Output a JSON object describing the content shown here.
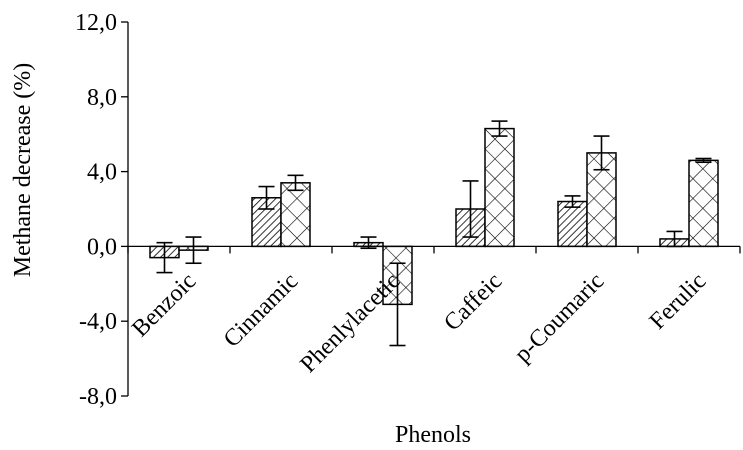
{
  "chart_data": {
    "type": "bar",
    "title": "",
    "xlabel": "Phenols",
    "ylabel": "Methane decrease (%)",
    "ylim": [
      -8.0,
      12.0
    ],
    "yticks": [
      "-8,0",
      "-4,0",
      "0,0",
      "4,0",
      "8,0",
      "12,0"
    ],
    "ytick_values": [
      -8,
      -4,
      0,
      4,
      8,
      12
    ],
    "categories": [
      "Benzoic",
      "Cinnamic",
      "Phenlylacetic",
      "Caffeic",
      "p-Coumaric",
      "Ferulic"
    ],
    "series": [
      {
        "pattern": "diagonal-hatch",
        "values": [
          -0.6,
          2.6,
          0.2,
          2.0,
          2.4,
          0.4
        ],
        "errors": [
          0.8,
          0.6,
          0.3,
          1.5,
          0.3,
          0.4
        ]
      },
      {
        "pattern": "crosshatch",
        "values": [
          -0.2,
          3.4,
          -3.1,
          6.3,
          5.0,
          4.6
        ],
        "errors": [
          0.7,
          0.4,
          2.2,
          0.4,
          0.9,
          0.1
        ]
      }
    ],
    "grid": false,
    "legend": "none"
  }
}
